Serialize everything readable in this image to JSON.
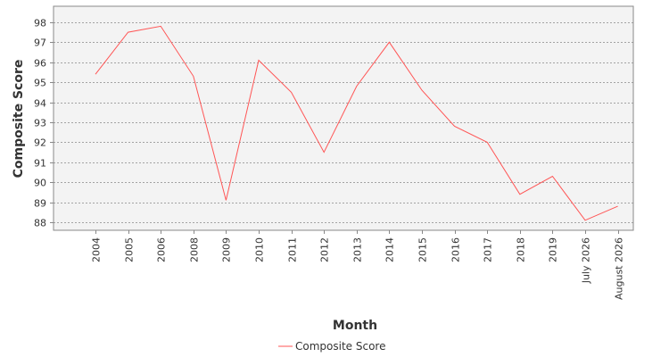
{
  "chart_data": {
    "type": "line",
    "title": "",
    "xlabel": "Month",
    "ylabel": "Composite Score",
    "categories": [
      "2004",
      "2005",
      "2006",
      "2008",
      "2009",
      "2010",
      "2011",
      "2012",
      "2013",
      "2014",
      "2015",
      "2016",
      "2017",
      "2018",
      "2019",
      "July 2026",
      "August 2026"
    ],
    "yticks": [
      88,
      89,
      90,
      91,
      92,
      93,
      94,
      95,
      96,
      97,
      98
    ],
    "ylim": [
      87.6,
      98.8
    ],
    "grid": true,
    "legend_position": "bottom-center",
    "series": [
      {
        "name": "Composite Score",
        "color": "#ff5555",
        "values": [
          95.4,
          97.5,
          97.8,
          95.3,
          89.1,
          96.1,
          94.5,
          91.5,
          94.8,
          97.0,
          94.6,
          92.8,
          92.0,
          89.4,
          90.3,
          88.1,
          88.8
        ]
      }
    ],
    "plot_background": "#f3f3f3",
    "grid_color": "#555555"
  }
}
